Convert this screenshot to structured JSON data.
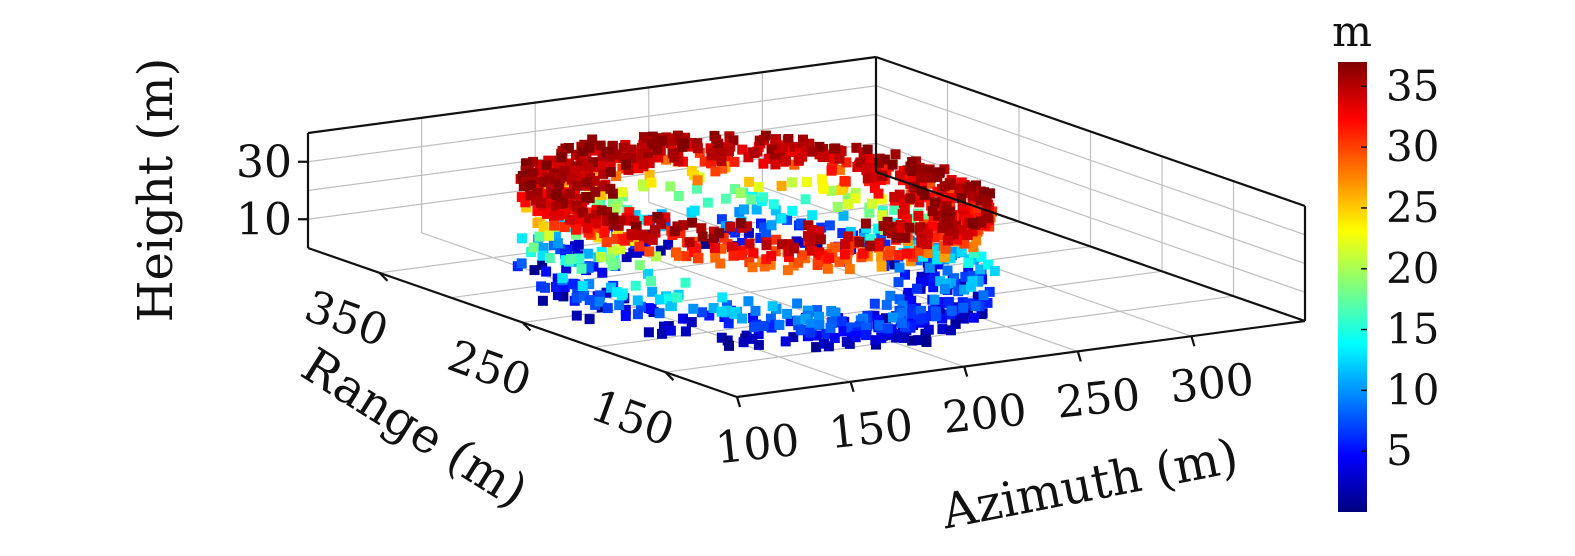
{
  "chart_data": {
    "type": "scatter",
    "subtype": "3d-point-cloud",
    "title": "",
    "x_axis": {
      "label": "Azimuth (m)",
      "range": [
        100,
        350
      ],
      "ticks": [
        100,
        150,
        200,
        250,
        300
      ]
    },
    "y_axis": {
      "label": "Range (m)",
      "range": [
        100,
        400
      ],
      "ticks": [
        150,
        250,
        350
      ]
    },
    "z_axis": {
      "label": "Height (m)",
      "range": [
        0,
        40
      ],
      "ticks": [
        10,
        30
      ]
    },
    "grid": true,
    "colorbar": {
      "unit": "m",
      "range": [
        0,
        37
      ],
      "ticks": [
        5,
        10,
        15,
        20,
        25,
        30,
        35
      ],
      "colormap": "jet",
      "placement": "right"
    },
    "point_cloud": {
      "shape": "roughly elliptical ring of building returns",
      "azimuth_center": 200,
      "range_center": 245,
      "azimuth_radius": 82,
      "range_radius": 105,
      "height_min": 0.5,
      "height_max": 37,
      "approx_points": 1400
    }
  },
  "colors": {
    "jet_stops": [
      "#00007f",
      "#0000ff",
      "#007fff",
      "#00ffff",
      "#7fff7f",
      "#ffff00",
      "#ff7f00",
      "#ff0000",
      "#7f0000"
    ],
    "axis_line": "#111111",
    "grid_line": "#bfbfbf"
  }
}
